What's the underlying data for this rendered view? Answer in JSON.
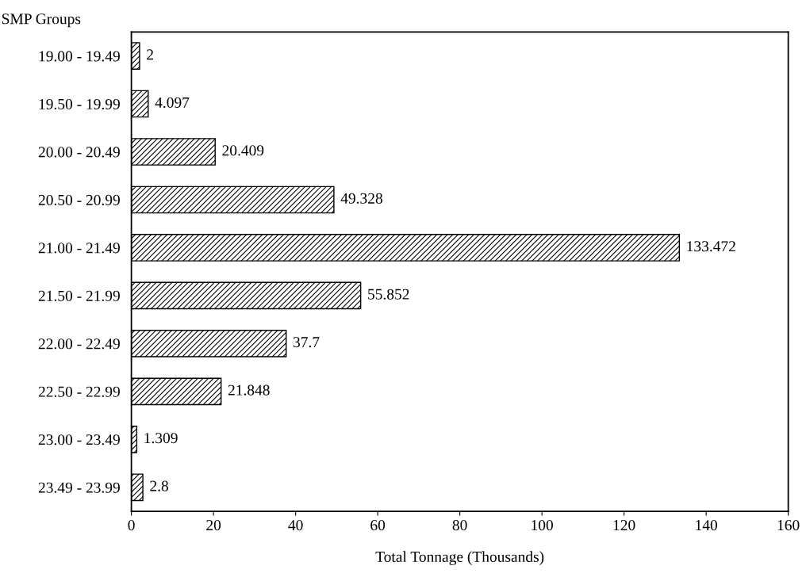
{
  "chart_data": {
    "type": "bar",
    "orientation": "horizontal",
    "ylabel": "SMP Groups",
    "xlabel": "Total Tonnage (Thousands)",
    "categories": [
      "19.00 - 19.49",
      "19.50 - 19.99",
      "20.00 - 20.49",
      "20.50 - 20.99",
      "21.00 - 21.49",
      "21.50 - 21.99",
      "22.00 - 22.49",
      "22.50 - 22.99",
      "23.00 - 23.49",
      "23.49 - 23.99"
    ],
    "values": [
      2,
      4.097,
      20.409,
      49.328,
      133.472,
      55.852,
      37.7,
      21.848,
      1.309,
      2.8
    ],
    "color": "#000000",
    "data_labels": true,
    "xlim": [
      0,
      160
    ],
    "xticks": [
      0,
      20,
      40,
      60,
      80,
      100,
      120,
      140,
      160
    ],
    "grid": false,
    "legend": false
  }
}
